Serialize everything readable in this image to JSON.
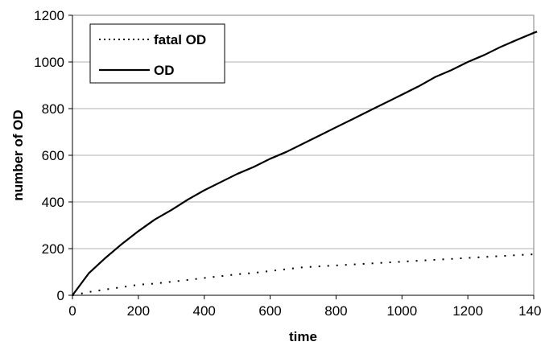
{
  "chart_data": {
    "type": "line",
    "title": "",
    "xlabel": "time",
    "ylabel": "number of OD",
    "xlim": [
      0,
      1400
    ],
    "ylim": [
      0,
      1200
    ],
    "xticks": [
      0,
      200,
      400,
      600,
      800,
      1000,
      1200,
      1400
    ],
    "yticks": [
      0,
      200,
      400,
      600,
      800,
      1000,
      1200
    ],
    "grid": "horizontal",
    "legend_position": "top-left",
    "series": [
      {
        "name": "fatal OD",
        "style": "dotted",
        "color": "#000000",
        "x": [
          0,
          50,
          100,
          150,
          200,
          250,
          300,
          350,
          400,
          450,
          500,
          550,
          600,
          650,
          700,
          750,
          800,
          850,
          900,
          950,
          1000,
          1050,
          1100,
          1150,
          1200,
          1250,
          1300,
          1350,
          1400
        ],
        "y": [
          0,
          14,
          25,
          35,
          45,
          50,
          58,
          66,
          74,
          82,
          90,
          96,
          104,
          112,
          120,
          124,
          128,
          132,
          136,
          140,
          144,
          148,
          152,
          156,
          160,
          164,
          168,
          172,
          176
        ]
      },
      {
        "name": "OD",
        "style": "solid",
        "color": "#000000",
        "x": [
          0,
          50,
          100,
          150,
          200,
          250,
          300,
          350,
          400,
          450,
          500,
          550,
          600,
          650,
          700,
          750,
          800,
          850,
          900,
          950,
          1000,
          1050,
          1100,
          1150,
          1200,
          1250,
          1300,
          1350,
          1400,
          1410
        ],
        "y": [
          0,
          95,
          160,
          220,
          275,
          325,
          365,
          410,
          450,
          485,
          520,
          550,
          585,
          615,
          650,
          685,
          720,
          755,
          790,
          825,
          860,
          895,
          935,
          965,
          1000,
          1030,
          1065,
          1095,
          1125,
          1130
        ]
      }
    ]
  }
}
